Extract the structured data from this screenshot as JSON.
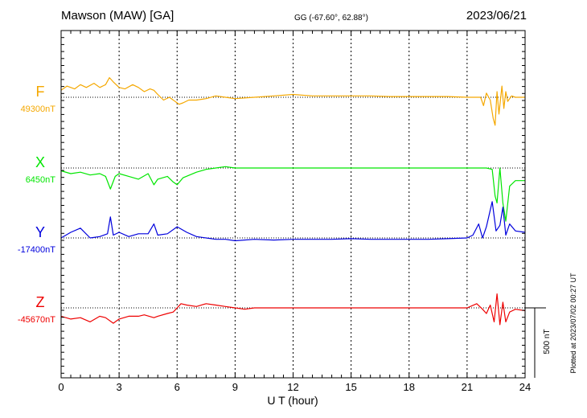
{
  "chart_data": {
    "type": "line",
    "title": "Mawson (MAW)  [GA]",
    "coords": "GG (-67.60°,  62.88°)",
    "date": "2023/06/21",
    "xlabel": "U T (hour)",
    "xlim": [
      0,
      24
    ],
    "xticks": [
      "0",
      "3",
      "6",
      "9",
      "12",
      "15",
      "18",
      "21",
      "24"
    ],
    "grid": true,
    "scale_label": "500 nT",
    "scale_nT": 500,
    "plotted_note": "Plotted at 2023/07/02 00:27 UT",
    "series": [
      {
        "name": "F",
        "baseline": "49300nT",
        "baseline_nT": 49300,
        "color": "#f5a800",
        "x": [
          0,
          0.3,
          0.7,
          1.0,
          1.3,
          1.7,
          2.0,
          2.3,
          2.5,
          2.7,
          3.0,
          3.3,
          3.7,
          4.0,
          4.3,
          4.6,
          4.8,
          5.0,
          5.3,
          5.6,
          5.9,
          6.1,
          6.3,
          6.6,
          7.0,
          7.5,
          8.0,
          8.5,
          9.0,
          10.0,
          11.0,
          12.0,
          13.0,
          14.0,
          15.0,
          16.0,
          17.0,
          18.0,
          19.0,
          20.0,
          21.0,
          21.5,
          21.7,
          21.85,
          22.0,
          22.2,
          22.35,
          22.45,
          22.55,
          22.65,
          22.8,
          22.9,
          23.0,
          23.1,
          23.3,
          23.5,
          23.8,
          24.0
        ],
        "y": [
          50,
          80,
          60,
          90,
          70,
          100,
          70,
          90,
          140,
          110,
          70,
          60,
          90,
          70,
          40,
          60,
          50,
          20,
          -20,
          0,
          -30,
          -50,
          -40,
          -20,
          -20,
          -10,
          10,
          0,
          -10,
          0,
          10,
          20,
          10,
          10,
          10,
          10,
          5,
          5,
          5,
          5,
          0,
          0,
          0,
          -60,
          30,
          -20,
          -150,
          -200,
          40,
          -120,
          80,
          -80,
          40,
          -30,
          10,
          0,
          0,
          0
        ]
      },
      {
        "name": "X",
        "baseline": "6450nT",
        "baseline_nT": 6450,
        "color": "#00e600",
        "x": [
          0,
          0.5,
          1.0,
          1.5,
          2.0,
          2.3,
          2.55,
          2.8,
          3.0,
          3.5,
          4.0,
          4.5,
          4.8,
          5.0,
          5.5,
          5.8,
          6.0,
          6.3,
          7.0,
          7.5,
          8.0,
          8.5,
          9.0,
          10.0,
          11.0,
          12.0,
          13.0,
          14.0,
          15.0,
          16.0,
          17.0,
          18.0,
          19.0,
          20.0,
          21.0,
          21.5,
          22.0,
          22.3,
          22.45,
          22.55,
          22.7,
          22.85,
          23.0,
          23.2,
          23.5,
          24.0
        ],
        "y": [
          -20,
          -40,
          -30,
          -50,
          -40,
          -60,
          -150,
          -60,
          -40,
          -60,
          -80,
          -40,
          -120,
          -80,
          -60,
          -100,
          -120,
          -70,
          -30,
          -10,
          0,
          10,
          0,
          0,
          0,
          0,
          0,
          0,
          0,
          0,
          0,
          0,
          0,
          0,
          0,
          0,
          0,
          -10,
          -200,
          -250,
          0,
          -250,
          -380,
          -130,
          -90,
          -90
        ]
      },
      {
        "name": "Y",
        "baseline": "-17400nT",
        "baseline_nT": -17400,
        "color": "#0000dd",
        "x": [
          0,
          0.5,
          1.0,
          1.5,
          2.0,
          2.4,
          2.55,
          2.7,
          3.0,
          3.5,
          4.0,
          4.5,
          4.8,
          5.0,
          5.5,
          6.0,
          6.5,
          7.0,
          7.5,
          8.0,
          8.5,
          9.0,
          10.0,
          11.0,
          12.0,
          13.0,
          14.0,
          15.0,
          16.0,
          17.0,
          18.0,
          19.0,
          20.0,
          21.0,
          21.3,
          21.6,
          21.8,
          22.0,
          22.3,
          22.5,
          22.7,
          22.85,
          23.0,
          23.2,
          23.5,
          24.0
        ],
        "y": [
          0,
          40,
          70,
          0,
          10,
          30,
          150,
          20,
          40,
          10,
          30,
          30,
          100,
          20,
          30,
          80,
          40,
          10,
          0,
          -10,
          -10,
          -20,
          -10,
          -15,
          -10,
          -10,
          -10,
          -5,
          -10,
          -10,
          -10,
          -10,
          -5,
          0,
          20,
          100,
          0,
          80,
          260,
          50,
          90,
          220,
          20,
          100,
          50,
          40
        ]
      },
      {
        "name": "Z",
        "baseline": "-45670nT",
        "baseline_nT": -45670,
        "color": "#ee0000",
        "x": [
          0,
          0.5,
          1.0,
          1.5,
          2.0,
          2.3,
          2.7,
          3.0,
          3.5,
          4.0,
          4.3,
          4.8,
          5.0,
          5.5,
          5.8,
          6.0,
          6.2,
          6.5,
          7.0,
          7.5,
          8.0,
          8.5,
          9.0,
          9.5,
          10.0,
          11.0,
          12.0,
          13.0,
          14.0,
          15.0,
          16.0,
          17.0,
          18.0,
          19.0,
          20.0,
          21.0,
          21.5,
          21.8,
          22.0,
          22.2,
          22.4,
          22.55,
          22.7,
          22.85,
          23.0,
          23.2,
          23.5,
          24.0
        ],
        "y": [
          -60,
          -80,
          -70,
          -100,
          -60,
          -70,
          -110,
          -80,
          -60,
          -60,
          -50,
          -70,
          -60,
          -40,
          -30,
          0,
          30,
          20,
          10,
          30,
          20,
          10,
          0,
          -10,
          0,
          0,
          0,
          0,
          0,
          0,
          0,
          0,
          0,
          0,
          0,
          0,
          30,
          -10,
          -40,
          20,
          -100,
          100,
          -120,
          40,
          -100,
          -30,
          -10,
          -20
        ]
      }
    ]
  }
}
